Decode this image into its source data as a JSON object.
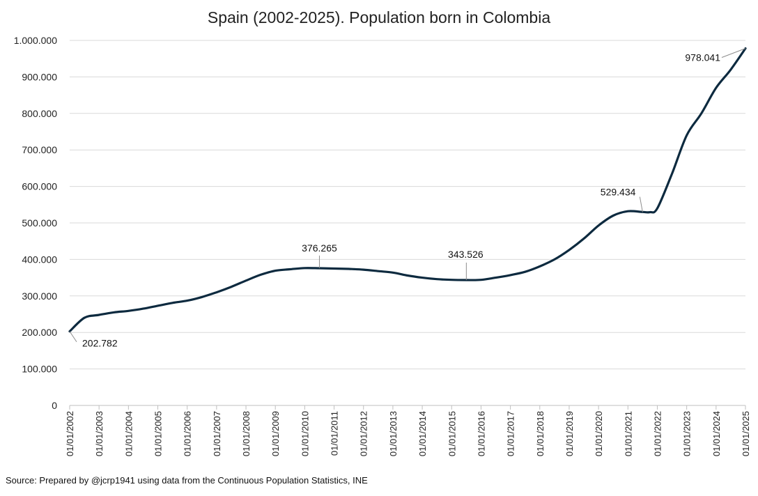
{
  "chart_data": {
    "type": "line",
    "title": "Spain (2002-2025). Population born in Colombia",
    "xlabel": "",
    "ylabel": "",
    "ylim": [
      0,
      1000000
    ],
    "yticks": [
      0,
      100000,
      200000,
      300000,
      400000,
      500000,
      600000,
      700000,
      800000,
      900000,
      1000000
    ],
    "ytick_labels": [
      "0",
      "100.000",
      "200.000",
      "300.000",
      "400.000",
      "500.000",
      "600.000",
      "700.000",
      "800.000",
      "900.000",
      "1.000.000"
    ],
    "xticks": [
      "01/01/2002",
      "01/01/2003",
      "01/01/2004",
      "01/01/2005",
      "01/01/2006",
      "01/01/2007",
      "01/01/2008",
      "01/01/2009",
      "01/01/2010",
      "01/01/2011",
      "01/01/2012",
      "01/01/2013",
      "01/01/2014",
      "01/01/2015",
      "01/01/2016",
      "01/01/2017",
      "01/01/2018",
      "01/01/2019",
      "01/01/2020",
      "01/01/2021",
      "01/01/2022",
      "01/01/2023",
      "01/01/2024",
      "01/01/2025"
    ],
    "grid": true,
    "series": [
      {
        "name": "Population born in Colombia",
        "color": "#0d2a3f",
        "x": [
          2002.0,
          2002.5,
          2003.0,
          2003.5,
          2004.0,
          2004.5,
          2005.0,
          2005.5,
          2006.0,
          2006.5,
          2007.0,
          2007.5,
          2008.0,
          2008.5,
          2009.0,
          2009.5,
          2010.0,
          2010.5,
          2011.0,
          2011.5,
          2012.0,
          2012.5,
          2013.0,
          2013.5,
          2014.0,
          2014.5,
          2015.0,
          2015.5,
          2016.0,
          2016.5,
          2017.0,
          2017.5,
          2018.0,
          2018.5,
          2019.0,
          2019.5,
          2020.0,
          2020.5,
          2021.0,
          2021.5,
          2021.75,
          2022.0,
          2022.5,
          2023.0,
          2023.5,
          2024.0,
          2024.5,
          2025.0
        ],
        "values": [
          202782,
          240000,
          248000,
          255000,
          259000,
          265000,
          273000,
          281000,
          287000,
          297000,
          310000,
          325000,
          342000,
          358000,
          369000,
          373000,
          376265,
          376000,
          375000,
          374000,
          372000,
          368000,
          364000,
          356000,
          350000,
          346000,
          344000,
          343526,
          344000,
          350000,
          357000,
          366000,
          381000,
          400000,
          426000,
          457000,
          493000,
          520000,
          532000,
          530000,
          529434,
          540000,
          635000,
          740000,
          800000,
          870000,
          920000,
          978041
        ]
      }
    ],
    "annotations": [
      {
        "label": "202.782",
        "x": 2002.0,
        "y": 202782
      },
      {
        "label": "376.265",
        "x": 2010.5,
        "y": 376265
      },
      {
        "label": "343.526",
        "x": 2015.5,
        "y": 343526
      },
      {
        "label": "529.434",
        "x": 2021.5,
        "y": 529434
      },
      {
        "label": "978.041",
        "x": 2025.0,
        "y": 978041
      }
    ]
  },
  "source_note": "Source: Prepared by @jcrp1941 using data from the Continuous Population Statistics, INE"
}
